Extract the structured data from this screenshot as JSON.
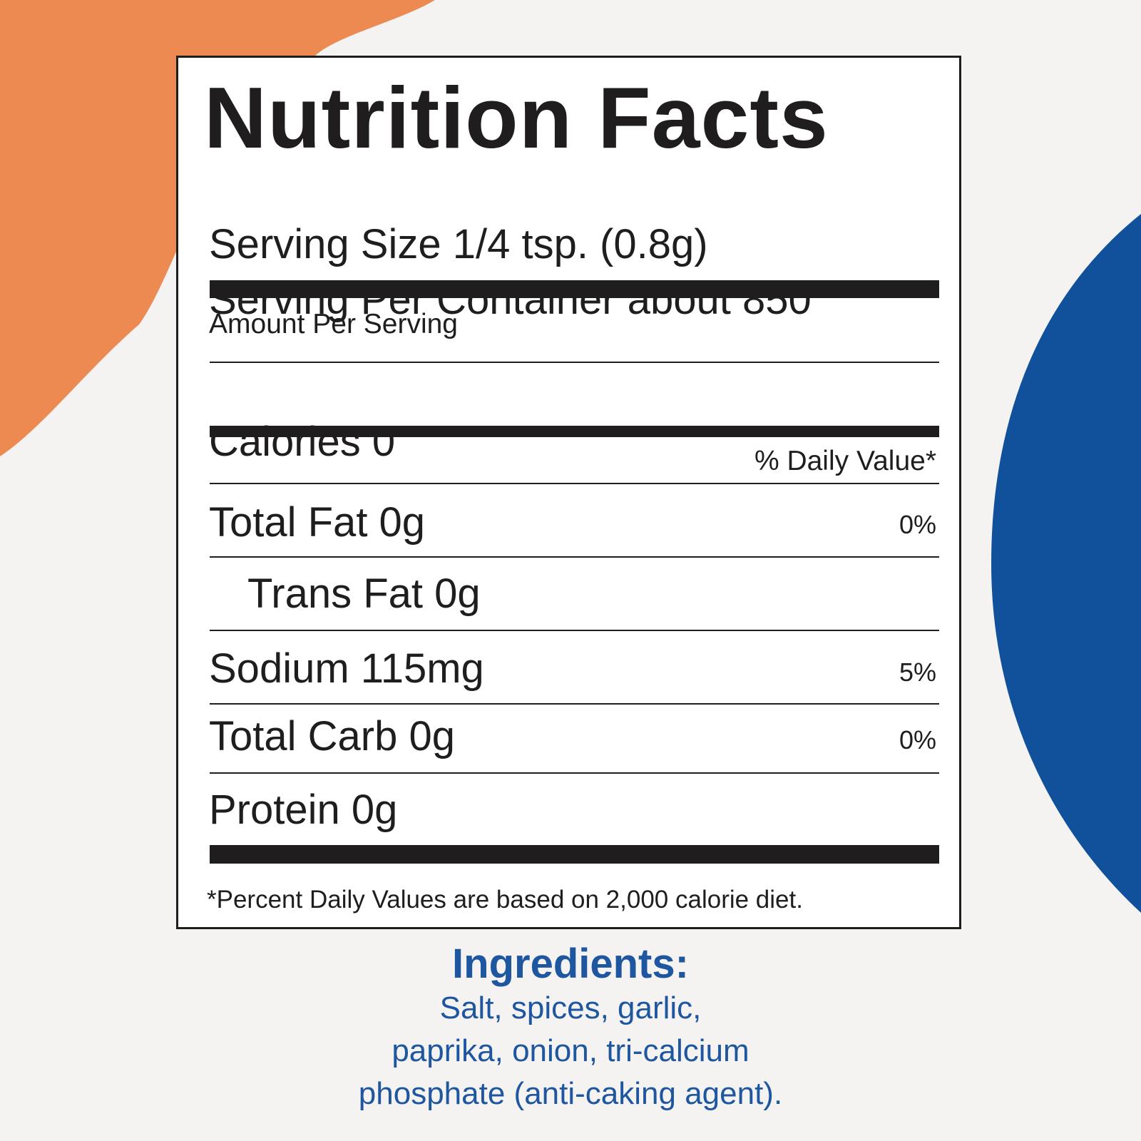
{
  "colors": {
    "background": "#f4f3f1",
    "orange_shape": "#ec8a52",
    "blue_shape": "#11519c",
    "ink": "#1f1d1e",
    "ingredient_text": "#1e56a0"
  },
  "nutrition": {
    "title": "Nutrition Facts",
    "serving_size": "Serving Size 1/4 tsp. (0.8g)",
    "servings_per_container": "Serving Per Container about 850",
    "amount_per_serving": "Amount Per Serving",
    "calories": "Calories 0",
    "daily_value_header": "% Daily Value*",
    "rows": [
      {
        "label": "Total Fat 0g",
        "dv": "0%"
      },
      {
        "label": "Trans Fat 0g",
        "dv": ""
      },
      {
        "label": "Sodium 115mg",
        "dv": "5%"
      },
      {
        "label": "Total Carb 0g",
        "dv": "0%"
      },
      {
        "label": "Protein 0g",
        "dv": ""
      }
    ],
    "footnote": "*Percent Daily Values are based on 2,000 calorie diet."
  },
  "ingredients": {
    "heading": "Ingredients:",
    "lines": [
      "Salt, spices, garlic,",
      "paprika, onion, tri-calcium",
      "phosphate (anti-caking agent)."
    ]
  }
}
